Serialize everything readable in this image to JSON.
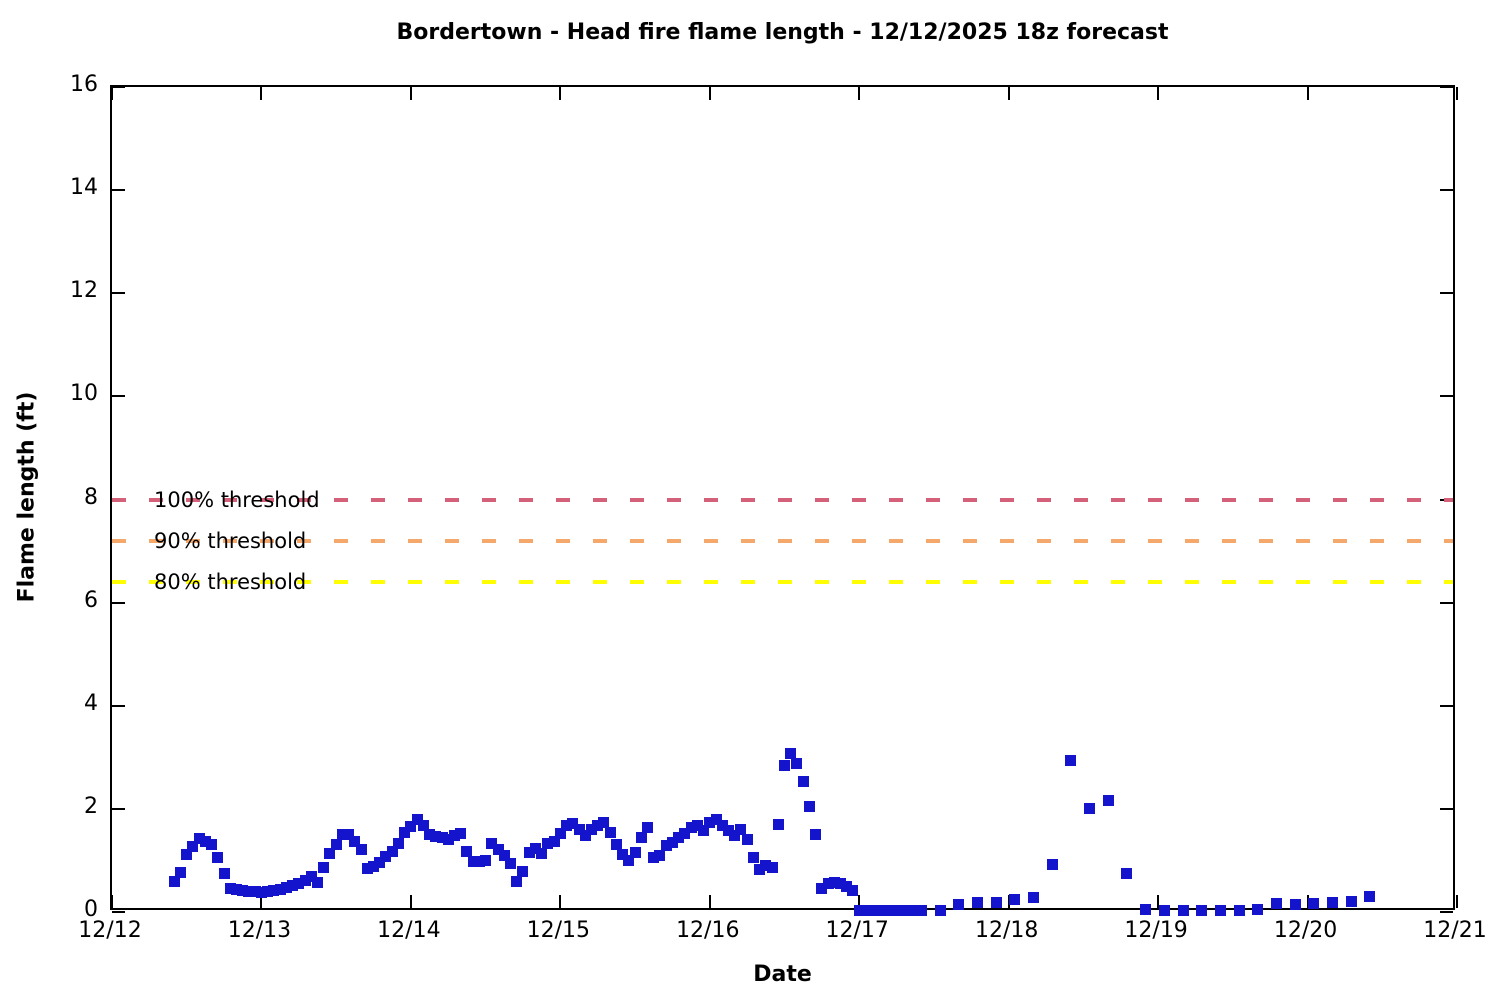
{
  "chart_data": {
    "type": "scatter",
    "title": "Bordertown - Head fire flame length - 12/12/2025 18z forecast",
    "xlabel": "Date",
    "ylabel": "Flame length (ft)",
    "x_tick_labels": [
      "12/12",
      "12/13",
      "12/14",
      "12/15",
      "12/16",
      "12/17",
      "12/18",
      "12/19",
      "12/20",
      "12/21"
    ],
    "y_ticks": [
      0,
      2,
      4,
      6,
      8,
      10,
      12,
      14,
      16
    ],
    "y_tick_labels": [
      "0",
      "2",
      "4",
      "6",
      "8",
      "10",
      "12",
      "14",
      "16"
    ],
    "ylim": [
      0,
      16
    ],
    "xlim_days": [
      0,
      9
    ],
    "grid": false,
    "legend": "none",
    "point_color": "#1414cc",
    "thresholds": [
      {
        "label": "100% threshold",
        "value": 8.0,
        "color": "#d5607a"
      },
      {
        "label": "90% threshold",
        "value": 7.2,
        "color": "#f4a86b"
      },
      {
        "label": "80% threshold",
        "value": 6.4,
        "color": "#ffff00"
      }
    ],
    "series": [
      {
        "name": "Head fire flame length",
        "marker": "square",
        "color": "#1414cc",
        "day_labels": [
          "12/12",
          "12/13",
          "12/14",
          "12/15",
          "12/16",
          "12/17",
          "12/18",
          "12/19",
          "12/20"
        ],
        "points_day_hour_value": [
          [
            0,
            10,
            0.6
          ],
          [
            0,
            11,
            0.77
          ],
          [
            0,
            12,
            1.12
          ],
          [
            0,
            13,
            1.28
          ],
          [
            0,
            14,
            1.43
          ],
          [
            0,
            15,
            1.37
          ],
          [
            0,
            16,
            1.3
          ],
          [
            0,
            17,
            1.05
          ],
          [
            0,
            18,
            0.74
          ],
          [
            0,
            19,
            0.46
          ],
          [
            0,
            20,
            0.43
          ],
          [
            0,
            21,
            0.41
          ],
          [
            0,
            22,
            0.4
          ],
          [
            0,
            23,
            0.39
          ],
          [
            1,
            0,
            0.38
          ],
          [
            1,
            1,
            0.39
          ],
          [
            1,
            2,
            0.41
          ],
          [
            1,
            3,
            0.44
          ],
          [
            1,
            4,
            0.48
          ],
          [
            1,
            5,
            0.52
          ],
          [
            1,
            6,
            0.56
          ],
          [
            1,
            7,
            0.61
          ],
          [
            1,
            8,
            0.68
          ],
          [
            1,
            9,
            0.58
          ],
          [
            1,
            10,
            0.87
          ],
          [
            1,
            11,
            1.14
          ],
          [
            1,
            12,
            1.3
          ],
          [
            1,
            13,
            1.5
          ],
          [
            1,
            14,
            1.51
          ],
          [
            1,
            15,
            1.36
          ],
          [
            1,
            16,
            1.22
          ],
          [
            1,
            17,
            0.84
          ],
          [
            1,
            18,
            0.88
          ],
          [
            1,
            19,
            0.96
          ],
          [
            1,
            20,
            1.08
          ],
          [
            1,
            21,
            1.18
          ],
          [
            1,
            22,
            1.32
          ],
          [
            1,
            23,
            1.55
          ],
          [
            2,
            0,
            1.66
          ],
          [
            2,
            1,
            1.79
          ],
          [
            2,
            2,
            1.67
          ],
          [
            2,
            3,
            1.5
          ],
          [
            2,
            4,
            1.47
          ],
          [
            2,
            5,
            1.45
          ],
          [
            2,
            6,
            1.4
          ],
          [
            2,
            7,
            1.48
          ],
          [
            2,
            8,
            1.52
          ],
          [
            2,
            9,
            1.18
          ],
          [
            2,
            10,
            0.98
          ],
          [
            2,
            11,
            0.97
          ],
          [
            2,
            12,
            0.99
          ],
          [
            2,
            13,
            1.33
          ],
          [
            2,
            14,
            1.21
          ],
          [
            2,
            15,
            1.1
          ],
          [
            2,
            16,
            0.94
          ],
          [
            2,
            17,
            0.6
          ],
          [
            2,
            18,
            0.78
          ],
          [
            2,
            19,
            1.16
          ],
          [
            2,
            20,
            1.23
          ],
          [
            2,
            21,
            1.13
          ],
          [
            2,
            22,
            1.33
          ],
          [
            2,
            23,
            1.36
          ],
          [
            3,
            0,
            1.52
          ],
          [
            3,
            1,
            1.67
          ],
          [
            3,
            2,
            1.71
          ],
          [
            3,
            3,
            1.6
          ],
          [
            3,
            4,
            1.48
          ],
          [
            3,
            5,
            1.6
          ],
          [
            3,
            6,
            1.68
          ],
          [
            3,
            7,
            1.74
          ],
          [
            3,
            8,
            1.55
          ],
          [
            3,
            9,
            1.3
          ],
          [
            3,
            10,
            1.12
          ],
          [
            3,
            11,
            1.0
          ],
          [
            3,
            12,
            1.15
          ],
          [
            3,
            13,
            1.45
          ],
          [
            3,
            14,
            1.64
          ],
          [
            3,
            15,
            1.05
          ],
          [
            3,
            16,
            1.09
          ],
          [
            3,
            17,
            1.29
          ],
          [
            3,
            18,
            1.35
          ],
          [
            3,
            19,
            1.45
          ],
          [
            3,
            20,
            1.53
          ],
          [
            3,
            21,
            1.64
          ],
          [
            3,
            22,
            1.68
          ],
          [
            3,
            23,
            1.59
          ],
          [
            4,
            0,
            1.73
          ],
          [
            4,
            1,
            1.8
          ],
          [
            4,
            2,
            1.68
          ],
          [
            4,
            3,
            1.58
          ],
          [
            4,
            4,
            1.48
          ],
          [
            4,
            5,
            1.6
          ],
          [
            4,
            6,
            1.4
          ],
          [
            4,
            7,
            1.05
          ],
          [
            4,
            8,
            0.82
          ],
          [
            4,
            9,
            0.9
          ],
          [
            4,
            10,
            0.87
          ],
          [
            4,
            11,
            1.7
          ],
          [
            4,
            12,
            2.85
          ],
          [
            4,
            13,
            3.08
          ],
          [
            4,
            14,
            2.88
          ],
          [
            4,
            15,
            2.53
          ],
          [
            4,
            16,
            2.04
          ],
          [
            4,
            17,
            1.51
          ],
          [
            4,
            18,
            0.45
          ],
          [
            4,
            19,
            0.55
          ],
          [
            4,
            20,
            0.58
          ],
          [
            4,
            21,
            0.55
          ],
          [
            4,
            22,
            0.5
          ],
          [
            4,
            23,
            0.42
          ],
          [
            5,
            0,
            0.02
          ],
          [
            5,
            1,
            0.02
          ],
          [
            5,
            2,
            0.02
          ],
          [
            5,
            3,
            0.02
          ],
          [
            5,
            4,
            0.02
          ],
          [
            5,
            5,
            0.02
          ],
          [
            5,
            6,
            0.02
          ],
          [
            5,
            7,
            0.02
          ],
          [
            5,
            8,
            0.02
          ],
          [
            5,
            9,
            0.02
          ],
          [
            5,
            10,
            0.02
          ],
          [
            5,
            13,
            0.02
          ],
          [
            5,
            16,
            0.14
          ],
          [
            5,
            19,
            0.19
          ],
          [
            5,
            22,
            0.18
          ],
          [
            6,
            1,
            0.25
          ],
          [
            6,
            4,
            0.29
          ],
          [
            6,
            7,
            0.93
          ],
          [
            6,
            10,
            2.94
          ],
          [
            6,
            13,
            2.0
          ],
          [
            6,
            16,
            2.16
          ],
          [
            6,
            19,
            0.74
          ],
          [
            6,
            22,
            0.05
          ],
          [
            7,
            1,
            0.03
          ],
          [
            7,
            4,
            0.02
          ],
          [
            7,
            7,
            0.02
          ],
          [
            7,
            10,
            0.02
          ],
          [
            7,
            13,
            0.02
          ],
          [
            7,
            16,
            0.05
          ],
          [
            7,
            19,
            0.16
          ],
          [
            7,
            22,
            0.15
          ],
          [
            8,
            1,
            0.17
          ],
          [
            8,
            4,
            0.19
          ],
          [
            8,
            7,
            0.21
          ],
          [
            8,
            10,
            0.31
          ]
        ]
      }
    ]
  }
}
